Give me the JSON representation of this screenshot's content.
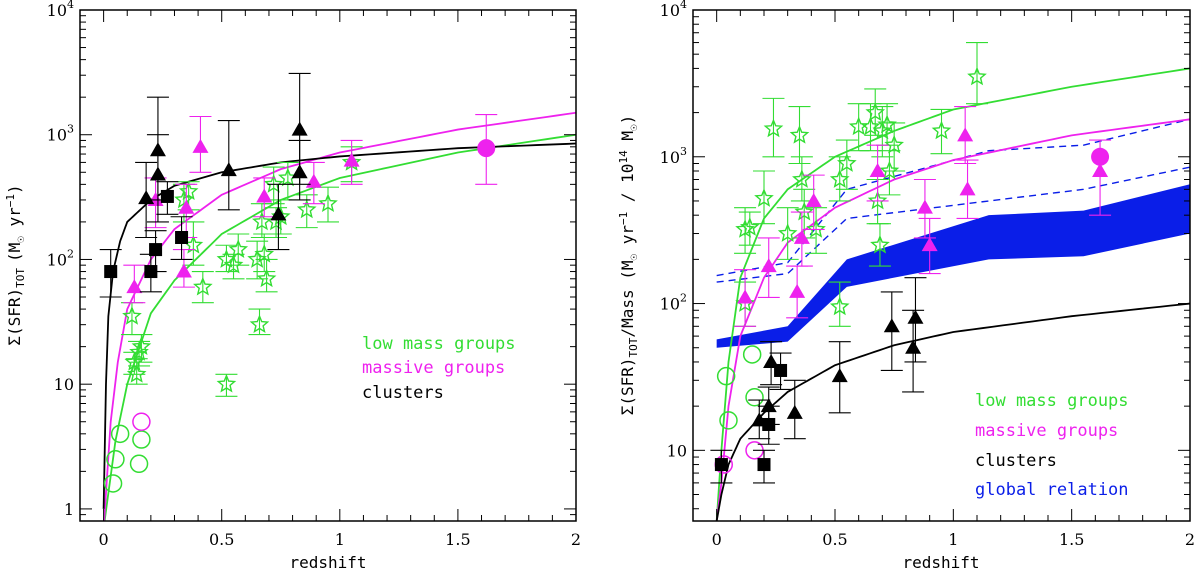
{
  "chart_data": [
    {
      "type": "scatter",
      "xlabel": "redshift",
      "ylabel": "Σ(SFR)_TOT (M☉ yr⁻¹)",
      "ylabel_parts": {
        "main": "Σ(SFR)",
        "sub": "TOT",
        "unit": "(M",
        "unit_sub": "☉",
        "unit_rest": " yr",
        "exp": "−1",
        "close": ")"
      },
      "xlim": [
        -0.1,
        2.0
      ],
      "ylim": [
        0.8,
        10000
      ],
      "yscale": "log",
      "xticks": [
        "0",
        "0.5",
        "1",
        "1.5",
        "2"
      ],
      "yticks": [
        "1",
        "10",
        "10²",
        "10³",
        "10⁴"
      ],
      "ytick_parts": [
        {
          "base": "1",
          "exp": ""
        },
        {
          "base": "10",
          "exp": ""
        },
        {
          "base": "10",
          "exp": "2"
        },
        {
          "base": "10",
          "exp": "3"
        },
        {
          "base": "10",
          "exp": "4"
        }
      ],
      "legend": [
        "low mass groups",
        "massive groups",
        "clusters"
      ],
      "colors": {
        "low_mass": "#33dd33",
        "massive": "#ee22ee",
        "clusters": "#000000"
      },
      "series": [
        {
          "name": "low mass groups",
          "marker": "star",
          "color": "#33dd33",
          "points": [
            [
              0.12,
              35,
              25,
              45
            ],
            [
              0.13,
              15,
              12,
              18
            ],
            [
              0.14,
              12,
              10,
              16
            ],
            [
              0.15,
              18,
              14,
              22
            ],
            [
              0.16,
              20,
              15,
              25
            ],
            [
              0.34,
              300,
              200,
              400
            ],
            [
              0.36,
              350,
              250,
              420
            ],
            [
              0.38,
              130,
              90,
              200
            ],
            [
              0.42,
              60,
              45,
              80
            ],
            [
              0.52,
              10,
              8,
              12
            ],
            [
              0.52,
              100,
              80,
              130
            ],
            [
              0.55,
              90,
              70,
              110
            ],
            [
              0.57,
              120,
              90,
              160
            ],
            [
              0.65,
              100,
              70,
              140
            ],
            [
              0.66,
              30,
              25,
              40
            ],
            [
              0.67,
              200,
              150,
              280
            ],
            [
              0.68,
              110,
              80,
              160
            ],
            [
              0.69,
              70,
              55,
              100
            ],
            [
              0.72,
              400,
              280,
              550
            ],
            [
              0.73,
              200,
              150,
              260
            ],
            [
              0.75,
              220,
              160,
              300
            ],
            [
              0.78,
              450,
              300,
              600
            ],
            [
              0.86,
              250,
              180,
              330
            ],
            [
              0.95,
              280,
              200,
              380
            ],
            [
              1.05,
              600,
              420,
              800
            ]
          ]
        },
        {
          "name": "low mass groups (z~0)",
          "marker": "circle",
          "color": "#33dd33",
          "points": [
            [
              0.04,
              1.6
            ],
            [
              0.05,
              2.5
            ],
            [
              0.07,
              4.0
            ],
            [
              0.15,
              2.3
            ],
            [
              0.16,
              3.6
            ]
          ]
        },
        {
          "name": "massive groups",
          "marker": "triangle",
          "color": "#ee22ee",
          "points": [
            [
              0.13,
              60,
              45,
              90
            ],
            [
              0.22,
              300,
              180,
              450
            ],
            [
              0.34,
              80,
              60,
              120
            ],
            [
              0.35,
              260,
              150,
              400
            ],
            [
              0.41,
              800,
              500,
              1400
            ],
            [
              0.68,
              320,
              220,
              450
            ],
            [
              0.89,
              420,
              280,
              600
            ],
            [
              1.05,
              620,
              400,
              900
            ],
            [
              1.62,
              800,
              400,
              1450
            ]
          ]
        },
        {
          "name": "massive groups (z~0)",
          "marker": "circle",
          "color": "#ee22ee",
          "points": [
            [
              0.16,
              5.0
            ]
          ]
        },
        {
          "name": "massive groups (z=1.62)",
          "marker": "filled-circle",
          "color": "#ee22ee",
          "points": [
            [
              1.62,
              780
            ]
          ]
        },
        {
          "name": "clusters",
          "marker": "triangle",
          "color": "#000000",
          "points": [
            [
              0.18,
              310,
              150,
              600
            ],
            [
              0.23,
              750,
              300,
              2000
            ],
            [
              0.23,
              480,
              200,
              1000
            ],
            [
              0.53,
              520,
              250,
              1300
            ],
            [
              0.74,
              230,
              120,
              400
            ],
            [
              0.83,
              500,
              300,
              900
            ],
            [
              0.83,
              1100,
              400,
              3100
            ]
          ]
        },
        {
          "name": "clusters (squares)",
          "marker": "square",
          "color": "#000000",
          "points": [
            [
              0.03,
              80,
              50,
              120
            ],
            [
              0.2,
              80,
              55,
              110
            ],
            [
              0.22,
              120,
              80,
              170
            ],
            [
              0.27,
              320,
              230,
              420
            ],
            [
              0.33,
              150,
              100,
              220
            ]
          ]
        }
      ],
      "fits": [
        {
          "name": "low mass groups",
          "color": "#33dd33",
          "x": [
            0.0,
            0.05,
            0.1,
            0.2,
            0.3,
            0.5,
            0.75,
            1.0,
            1.5,
            2.0
          ],
          "y": [
            0.7,
            3.5,
            10,
            37,
            68,
            160,
            300,
            450,
            720,
            1000
          ]
        },
        {
          "name": "massive groups",
          "color": "#ee22ee",
          "x": [
            0.0,
            0.03,
            0.06,
            0.1,
            0.2,
            0.3,
            0.5,
            0.75,
            1.0,
            1.5,
            2.0
          ],
          "y": [
            0.7,
            5,
            15,
            40,
            100,
            175,
            330,
            530,
            720,
            1100,
            1500
          ]
        },
        {
          "name": "clusters",
          "color": "#000000",
          "x": [
            0.0,
            0.01,
            0.02,
            0.04,
            0.07,
            0.1,
            0.2,
            0.3,
            0.5,
            0.75,
            1.0,
            1.5,
            2.0
          ],
          "y": [
            1.0,
            10,
            35,
            80,
            140,
            200,
            300,
            390,
            500,
            600,
            670,
            780,
            850
          ]
        }
      ]
    },
    {
      "type": "scatter",
      "xlabel": "redshift",
      "ylabel": "Σ(SFR)_TOT/Mass (M☉ yr⁻¹ / 10¹⁴ M☉)",
      "ylabel_parts": {
        "main": "Σ(SFR)",
        "sub": "TOT",
        "mid": "/Mass (M",
        "sun1": "☉",
        "yr": " yr",
        "exp1": "−1",
        "slash": " / 10",
        "exp2": "14",
        "m2": " M",
        "sun2": "☉",
        "close": ")"
      },
      "xlim": [
        -0.1,
        2.0
      ],
      "ylim": [
        3.3,
        10000
      ],
      "yscale": "log",
      "xticks": [
        "0",
        "0.5",
        "1",
        "1.5",
        "2"
      ],
      "yticks": [
        "10",
        "10²",
        "10³",
        "10⁴"
      ],
      "ytick_parts": [
        {
          "base": "10",
          "exp": ""
        },
        {
          "base": "10",
          "exp": "2"
        },
        {
          "base": "10",
          "exp": "3"
        },
        {
          "base": "10",
          "exp": "4"
        }
      ],
      "legend": [
        "low mass groups",
        "massive groups",
        "clusters",
        "global relation"
      ],
      "colors": {
        "low_mass": "#33dd33",
        "massive": "#ee22ee",
        "clusters": "#000000",
        "global": "#0a1ee8"
      },
      "series": [
        {
          "name": "low mass groups",
          "marker": "star",
          "color": "#33dd33",
          "points": [
            [
              0.12,
              100,
              70,
              140
            ],
            [
              0.12,
              320,
              220,
              450
            ],
            [
              0.14,
              330,
              250,
              420
            ],
            [
              0.2,
              520,
              350,
              800
            ],
            [
              0.24,
              1550,
              1000,
              2500
            ],
            [
              0.3,
              300,
              200,
              450
            ],
            [
              0.35,
              1400,
              900,
              2200
            ],
            [
              0.36,
              700,
              500,
              1000
            ],
            [
              0.37,
              420,
              280,
              600
            ],
            [
              0.42,
              320,
              220,
              450
            ],
            [
              0.52,
              95,
              70,
              140
            ],
            [
              0.52,
              700,
              500,
              1000
            ],
            [
              0.55,
              900,
              600,
              1300
            ],
            [
              0.6,
              1600,
              1100,
              2300
            ],
            [
              0.65,
              1600,
              1100,
              2300
            ],
            [
              0.67,
              2000,
              1400,
              2900
            ],
            [
              0.68,
              500,
              350,
              700
            ],
            [
              0.69,
              250,
              180,
              350
            ],
            [
              0.7,
              1500,
              1000,
              2200
            ],
            [
              0.72,
              1650,
              1200,
              2300
            ],
            [
              0.73,
              800,
              550,
              1100
            ],
            [
              0.75,
              1200,
              800,
              1700
            ],
            [
              0.95,
              1500,
              1050,
              2100
            ],
            [
              1.1,
              3500,
              2300,
              6000
            ]
          ]
        },
        {
          "name": "low mass groups (z~0)",
          "marker": "circle",
          "color": "#33dd33",
          "points": [
            [
              0.04,
              32
            ],
            [
              0.05,
              16
            ],
            [
              0.15,
              45
            ],
            [
              0.16,
              23
            ]
          ]
        },
        {
          "name": "massive groups",
          "marker": "triangle",
          "color": "#ee22ee",
          "points": [
            [
              0.12,
              110,
              70,
              170
            ],
            [
              0.22,
              180,
              110,
              280
            ],
            [
              0.34,
              120,
              80,
              180
            ],
            [
              0.36,
              280,
              180,
              420
            ],
            [
              0.41,
              500,
              320,
              750
            ],
            [
              0.68,
              800,
              500,
              1200
            ],
            [
              0.88,
              450,
              280,
              700
            ],
            [
              0.9,
              250,
              160,
              380
            ],
            [
              1.05,
              1400,
              900,
              2200
            ],
            [
              1.06,
              600,
              380,
              950
            ],
            [
              1.62,
              800,
              400,
              1300
            ]
          ]
        },
        {
          "name": "massive groups (z~0)",
          "marker": "circle",
          "color": "#ee22ee",
          "points": [
            [
              0.03,
              8
            ],
            [
              0.16,
              10
            ]
          ]
        },
        {
          "name": "massive groups (z=1.62)",
          "marker": "filled-circle",
          "color": "#ee22ee",
          "points": [
            [
              1.62,
              1000
            ]
          ]
        },
        {
          "name": "clusters",
          "marker": "triangle",
          "color": "#000000",
          "points": [
            [
              0.18,
              16,
              12,
              22
            ],
            [
              0.22,
              20,
              15,
              27
            ],
            [
              0.23,
              40,
              28,
              55
            ],
            [
              0.33,
              18,
              12,
              30
            ],
            [
              0.52,
              32,
              18,
              55
            ],
            [
              0.74,
              70,
              35,
              120
            ],
            [
              0.83,
              50,
              25,
              90
            ],
            [
              0.84,
              80,
              40,
              150
            ]
          ]
        },
        {
          "name": "clusters (squares)",
          "marker": "square",
          "color": "#000000",
          "points": [
            [
              0.02,
              8,
              6,
              10
            ],
            [
              0.2,
              8,
              6,
              10
            ],
            [
              0.22,
              15,
              11,
              20
            ],
            [
              0.27,
              35,
              26,
              46
            ]
          ]
        }
      ],
      "fits": [
        {
          "name": "low mass groups",
          "color": "#33dd33",
          "x": [
            0.0,
            0.02,
            0.05,
            0.1,
            0.2,
            0.3,
            0.5,
            0.75,
            1.0,
            1.5,
            2.0
          ],
          "y": [
            3.3,
            10,
            40,
            150,
            380,
            600,
            1000,
            1500,
            2100,
            3000,
            4000
          ]
        },
        {
          "name": "massive groups",
          "color": "#ee22ee",
          "x": [
            0.0,
            0.02,
            0.05,
            0.1,
            0.2,
            0.3,
            0.5,
            0.75,
            1.0,
            1.5,
            2.0
          ],
          "y": [
            3.3,
            6,
            20,
            60,
            150,
            260,
            450,
            700,
            950,
            1400,
            1800
          ]
        },
        {
          "name": "clusters",
          "color": "#000000",
          "x": [
            0.0,
            0.02,
            0.05,
            0.1,
            0.2,
            0.3,
            0.5,
            0.75,
            1.0,
            1.5,
            2.0
          ],
          "y": [
            3.3,
            5,
            8,
            12,
            18,
            25,
            38,
            52,
            64,
            82,
            100
          ]
        }
      ],
      "global_band": {
        "color": "#0a1ee8",
        "x": [
          0.0,
          0.3,
          0.55,
          1.15,
          1.55,
          2.0
        ],
        "upper": [
          57,
          70,
          200,
          400,
          430,
          650
        ],
        "lower": [
          50,
          55,
          130,
          200,
          210,
          300
        ]
      },
      "global_dashed": {
        "color": "#0a1ee8",
        "x": [
          0.0,
          0.3,
          0.55,
          1.15,
          1.55,
          2.0
        ],
        "upper": [
          155,
          190,
          600,
          1100,
          1200,
          1800
        ],
        "lower": [
          140,
          160,
          380,
          500,
          600,
          850
        ]
      }
    }
  ]
}
